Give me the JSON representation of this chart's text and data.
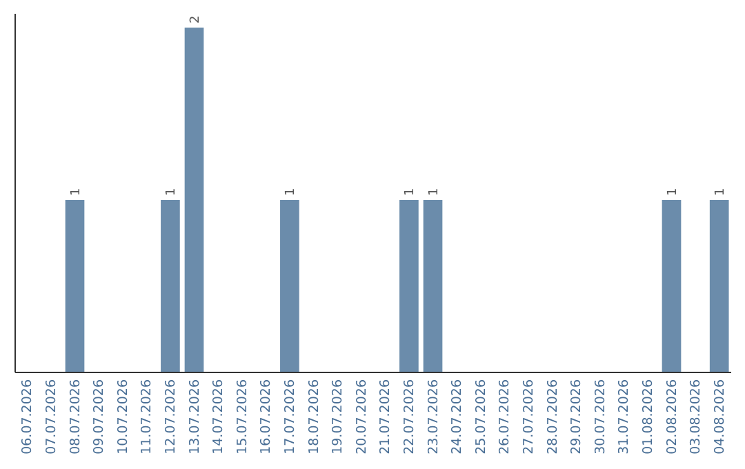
{
  "chart_data": {
    "type": "bar",
    "categories": [
      "06.07.2026",
      "07.07.2026",
      "08.07.2026",
      "09.07.2026",
      "10.07.2026",
      "11.07.2026",
      "12.07.2026",
      "13.07.2026",
      "14.07.2026",
      "15.07.2026",
      "16.07.2026",
      "17.07.2026",
      "18.07.2026",
      "19.07.2026",
      "20.07.2026",
      "21.07.2026",
      "22.07.2026",
      "23.07.2026",
      "24.07.2026",
      "25.07.2026",
      "26.07.2026",
      "27.07.2026",
      "28.07.2026",
      "29.07.2026",
      "30.07.2026",
      "31.07.2026",
      "01.08.2026",
      "02.08.2026",
      "03.08.2026",
      "04.08.2026"
    ],
    "values": [
      0,
      0,
      1,
      0,
      0,
      0,
      1,
      2,
      0,
      0,
      0,
      1,
      0,
      0,
      0,
      0,
      1,
      1,
      0,
      0,
      0,
      0,
      0,
      0,
      0,
      0,
      0,
      1,
      0,
      1
    ],
    "value_labels": [
      null,
      null,
      "1",
      null,
      null,
      null,
      "1",
      "2",
      null,
      null,
      null,
      "1",
      null,
      null,
      null,
      null,
      "1",
      "1",
      null,
      null,
      null,
      null,
      null,
      null,
      null,
      null,
      null,
      "1",
      null,
      "1"
    ],
    "color": "#6b8cab"
  }
}
